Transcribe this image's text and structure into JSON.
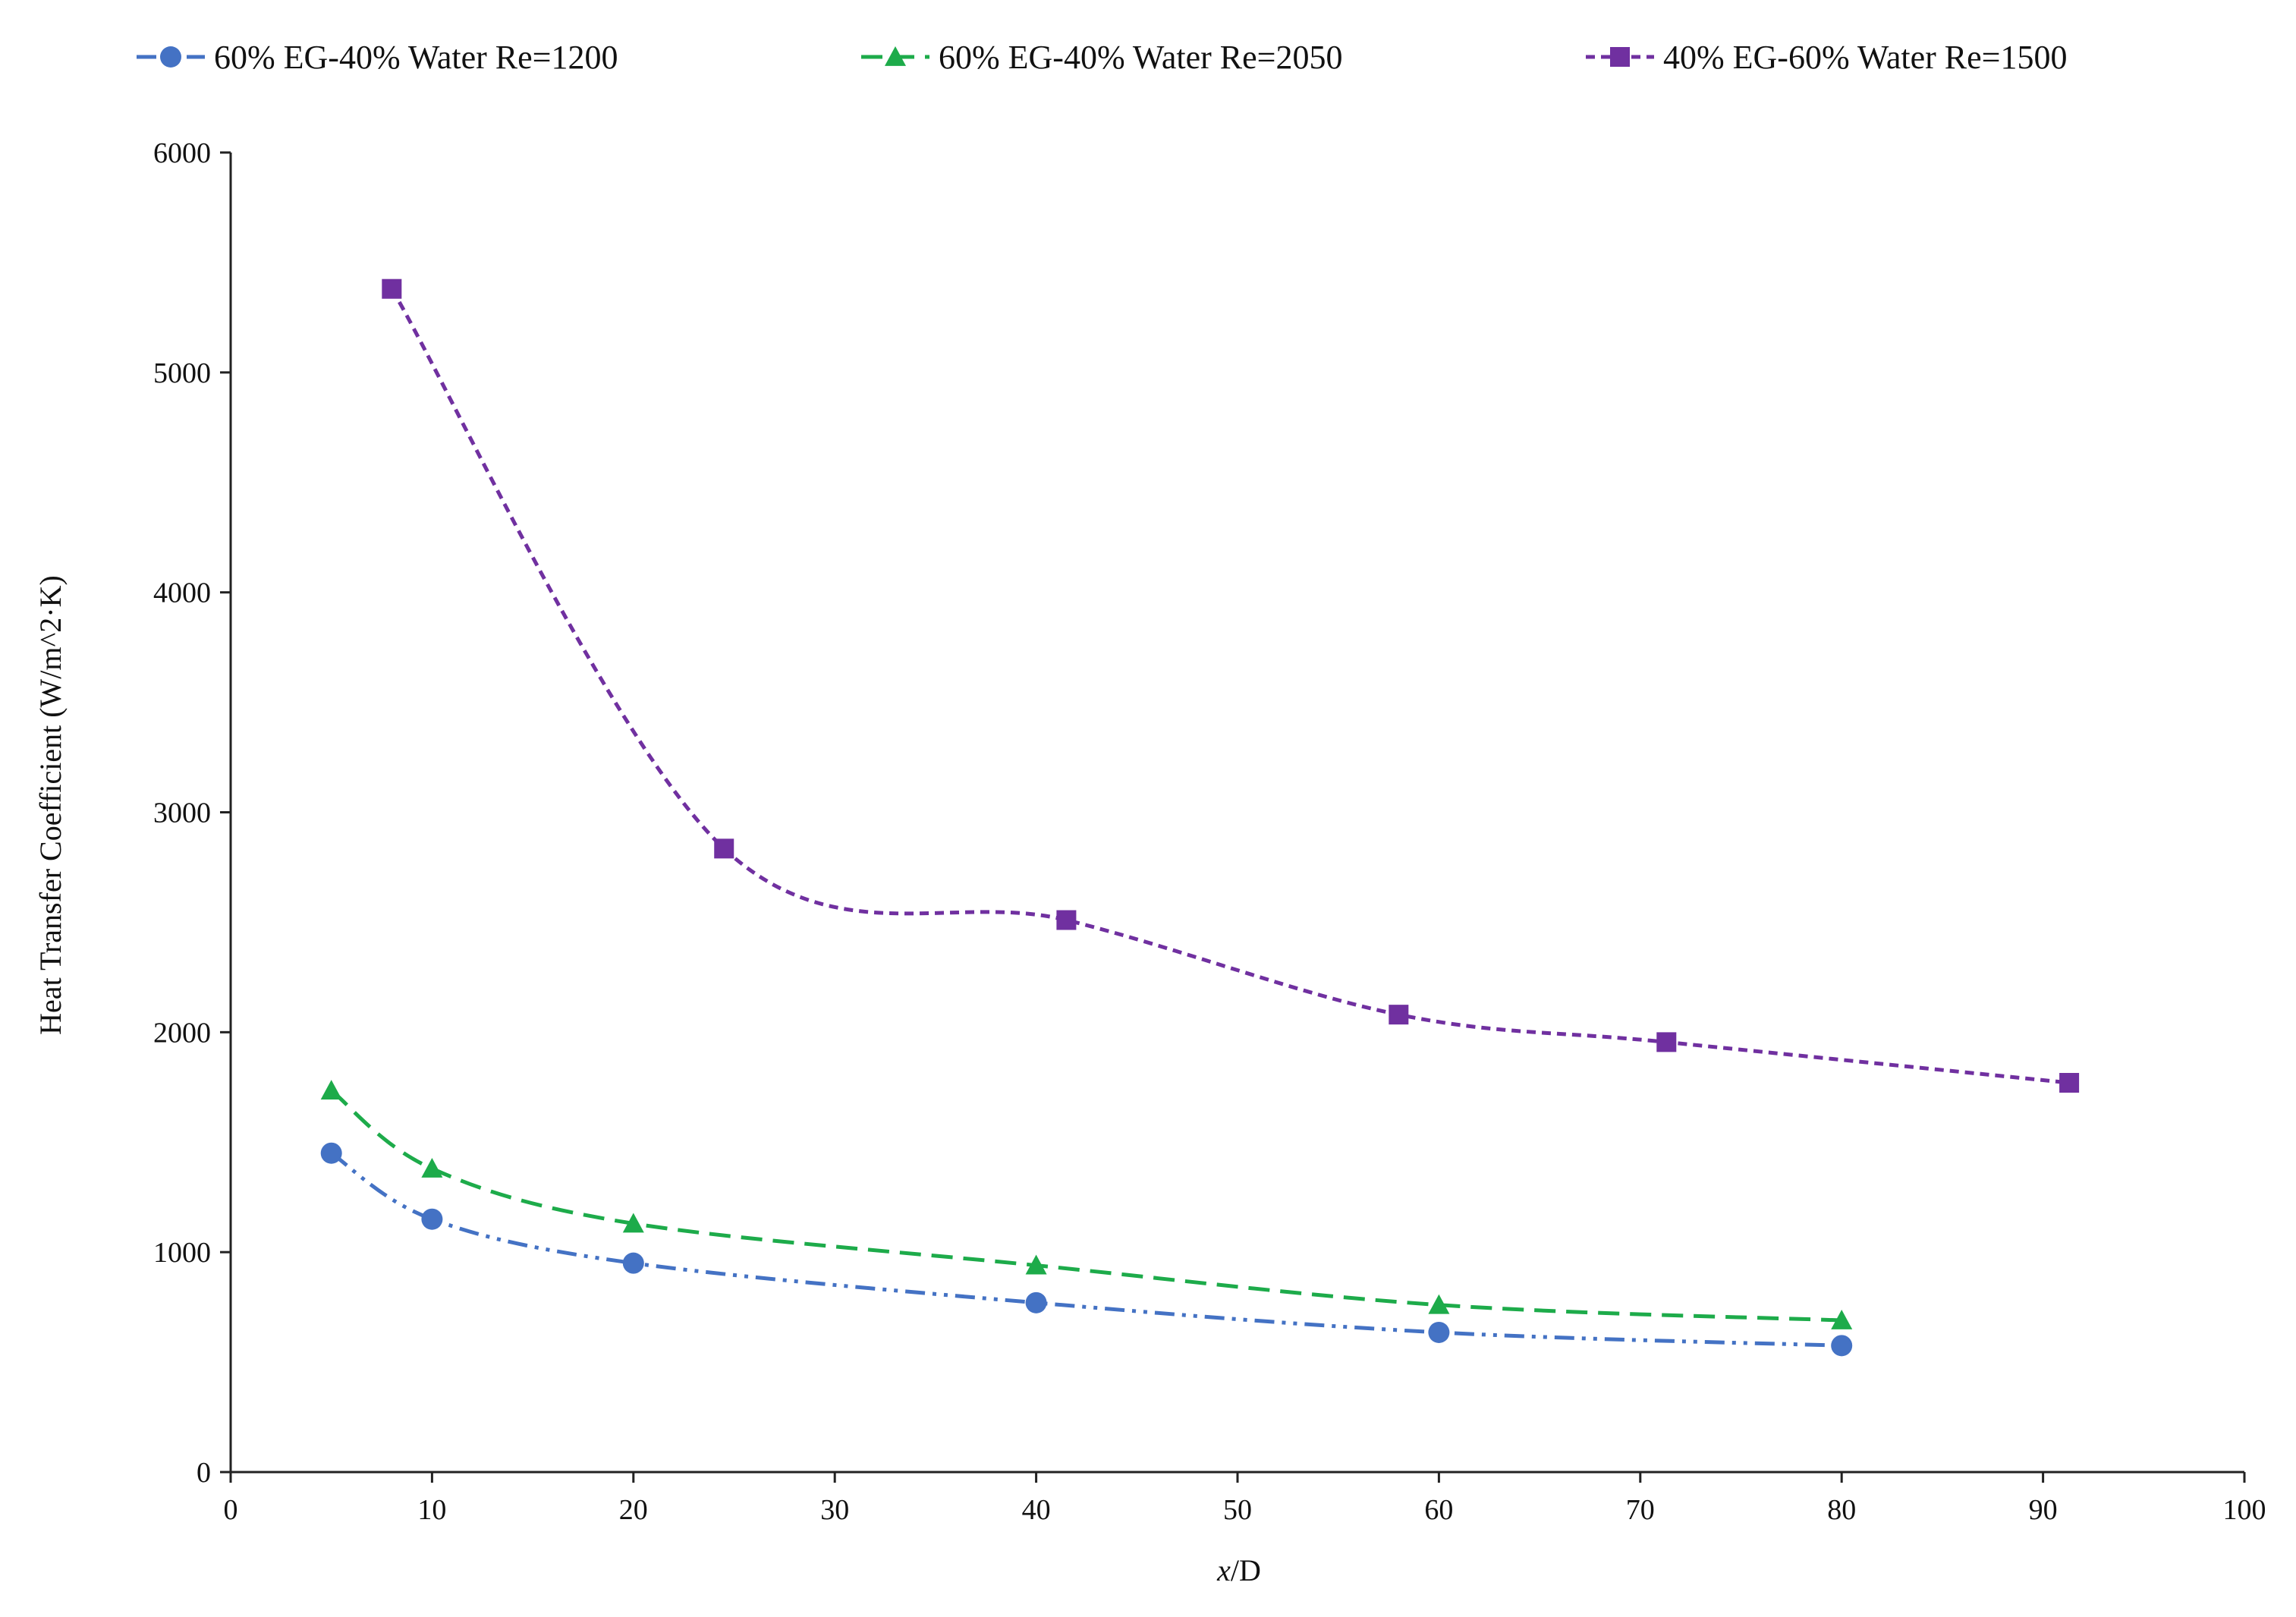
{
  "chart_data": {
    "type": "line",
    "title": "",
    "xlabel_italic": "x",
    "xlabel_rest": "/D",
    "ylabel": "Heat Transfer Coefficient  (W/m^2·K)",
    "xlim": [
      0,
      100
    ],
    "ylim": [
      0,
      6000
    ],
    "xticks": [
      0,
      10,
      20,
      30,
      40,
      50,
      60,
      70,
      80,
      90,
      100
    ],
    "yticks": [
      0,
      1000,
      2000,
      3000,
      4000,
      5000,
      6000
    ],
    "grid": false,
    "legend_position": "top",
    "series": [
      {
        "name": "60% EG-40% Water Re=1200",
        "color": "#4472C4",
        "marker": "circle",
        "line_style": "dash-dot-dot",
        "x": [
          5,
          10,
          20,
          40,
          60,
          80
        ],
        "y": [
          1450,
          1150,
          950,
          770,
          635,
          575
        ]
      },
      {
        "name": "60% EG-40% Water Re=2050",
        "color": "#1DAB4A",
        "marker": "triangle",
        "line_style": "long-dash",
        "x": [
          5,
          10,
          20,
          40,
          60,
          80
        ],
        "y": [
          1735,
          1380,
          1130,
          940,
          760,
          690
        ]
      },
      {
        "name": "40% EG-60% Water Re=1500",
        "color": "#7030A0",
        "marker": "square",
        "line_style": "short-dash",
        "x": [
          8,
          24.5,
          41.5,
          58,
          71.3,
          91.3
        ],
        "y": [
          5380,
          2835,
          2510,
          2080,
          1955,
          1770
        ]
      }
    ]
  }
}
